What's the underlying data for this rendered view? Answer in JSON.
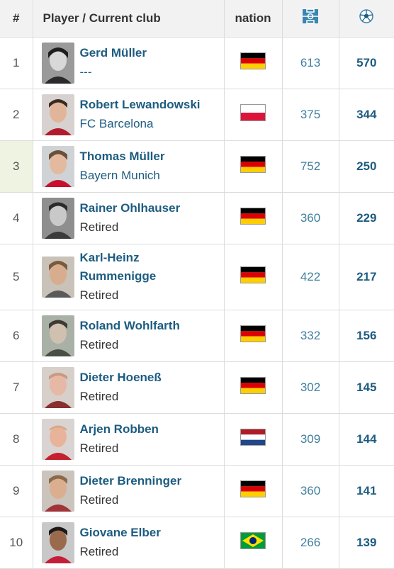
{
  "header": {
    "rank": "#",
    "player": "Player / Current club",
    "nation": "nation",
    "apps_icon": "pitch-icon",
    "goals_icon": "football-icon"
  },
  "colors": {
    "link": "#1d5c80",
    "apps": "#3f7f9e",
    "header_bg": "#f2f2f2",
    "highlight": "#eef3e2"
  },
  "rows": [
    {
      "rank": "1",
      "name": "Gerd Müller",
      "club": "---",
      "club_link": true,
      "nation": "Germany",
      "flag": "germany-flag-icon",
      "apps": "613",
      "goals": "570"
    },
    {
      "rank": "2",
      "name": "Robert Lewandowski",
      "club": "FC Barcelona",
      "club_link": true,
      "nation": "Poland",
      "flag": "poland-flag-icon",
      "apps": "375",
      "goals": "344"
    },
    {
      "rank": "3",
      "name": "Thomas Müller",
      "club": "Bayern Munich",
      "club_link": true,
      "nation": "Germany",
      "flag": "germany-flag-icon",
      "apps": "752",
      "goals": "250"
    },
    {
      "rank": "4",
      "name": "Rainer Ohlhauser",
      "club": "Retired",
      "club_link": false,
      "nation": "Germany",
      "flag": "germany-flag-icon",
      "apps": "360",
      "goals": "229"
    },
    {
      "rank": "5",
      "name": "Karl-Heinz Rummenigge",
      "club": "Retired",
      "club_link": false,
      "nation": "Germany",
      "flag": "germany-flag-icon",
      "apps": "422",
      "goals": "217"
    },
    {
      "rank": "6",
      "name": "Roland Wohlfarth",
      "club": "Retired",
      "club_link": false,
      "nation": "Germany",
      "flag": "germany-flag-icon",
      "apps": "332",
      "goals": "156"
    },
    {
      "rank": "7",
      "name": "Dieter Hoeneß",
      "club": "Retired",
      "club_link": false,
      "nation": "Germany",
      "flag": "germany-flag-icon",
      "apps": "302",
      "goals": "145"
    },
    {
      "rank": "8",
      "name": "Arjen Robben",
      "club": "Retired",
      "club_link": false,
      "nation": "Netherlands",
      "flag": "netherlands-flag-icon",
      "apps": "309",
      "goals": "144"
    },
    {
      "rank": "9",
      "name": "Dieter Brenninger",
      "club": "Retired",
      "club_link": false,
      "nation": "Germany",
      "flag": "germany-flag-icon",
      "apps": "360",
      "goals": "141"
    },
    {
      "rank": "10",
      "name": "Giovane Elber",
      "club": "Retired",
      "club_link": false,
      "nation": "Brazil",
      "flag": "brazil-flag-icon",
      "apps": "266",
      "goals": "139"
    }
  ]
}
